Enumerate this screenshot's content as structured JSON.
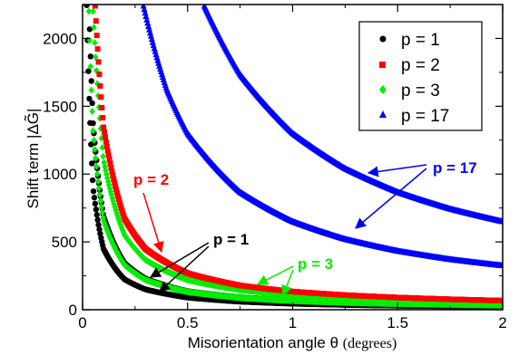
{
  "chart_data": {
    "type": "scatter",
    "xlabel": "Misorientation angle θ",
    "xlabel_unit": "(degrees)",
    "ylabel": "Shift term |ΔG̃|",
    "xlim": [
      0,
      2
    ],
    "ylim": [
      0,
      2250
    ],
    "x_ticks": [
      "0",
      "0.5",
      "1",
      "1.5",
      "2"
    ],
    "y_ticks": [
      "0",
      "500",
      "1000",
      "1500",
      "2000"
    ],
    "legend_position": "top-right",
    "series": [
      {
        "name": "p = 1",
        "color": "#000000",
        "marker": "circle",
        "curves": [
          {
            "x": [
              0.02,
              0.05,
              0.1,
              0.2,
              0.3,
              0.5,
              0.75,
              1.0,
              1.25,
              1.5,
              1.75,
              2.0
            ],
            "y": [
              2245,
              898,
              449,
              224,
              150,
              90,
              60,
              45,
              36,
              30,
              26,
              22
            ]
          },
          {
            "x": [
              0.03,
              0.05,
              0.1,
              0.2,
              0.3,
              0.5,
              0.75,
              1.0,
              1.25,
              1.5,
              1.75,
              2.0
            ],
            "y": [
              2290,
              1375,
              687,
              344,
              229,
              137,
              92,
              69,
              55,
              46,
              39,
              34
            ]
          }
        ]
      },
      {
        "name": "p = 2",
        "color": "#ff0000",
        "marker": "square",
        "curves": [
          {
            "x": [
              0.06,
              0.1,
              0.2,
              0.3,
              0.5,
              0.75,
              1.0,
              1.25,
              1.5,
              1.75,
              2.0
            ],
            "y": [
              2240,
              1345,
              672,
              448,
              269,
              179,
              134,
              108,
              90,
              77,
              67
            ]
          }
        ]
      },
      {
        "name": "p = 3",
        "color": "#00ee00",
        "marker": "diamond",
        "curves": [
          {
            "x": [
              0.03,
              0.05,
              0.1,
              0.2,
              0.3,
              0.5,
              0.75,
              1.0,
              1.25,
              1.5,
              1.75,
              2.0
            ],
            "y": [
              2200,
              1320,
              660,
              330,
              220,
              132,
              88,
              66,
              53,
              44,
              38,
              33
            ]
          },
          {
            "x": [
              0.05,
              0.1,
              0.2,
              0.3,
              0.5,
              0.75,
              1.0,
              1.25,
              1.5,
              1.75,
              2.0
            ],
            "y": [
              2200,
              1100,
              550,
              367,
              220,
              147,
              110,
              88,
              73,
              63,
              55
            ]
          }
        ]
      },
      {
        "name": "p = 17",
        "color": "#0000ff",
        "marker": "triangle",
        "curves": [
          {
            "x": [
              0.29,
              0.4,
              0.5,
              0.75,
              1.0,
              1.25,
              1.5,
              1.75,
              2.0
            ],
            "y": [
              2240,
              1628,
              1302,
              868,
              651,
              521,
              434,
              372,
              326
            ]
          },
          {
            "x": [
              0.58,
              0.75,
              1.0,
              1.25,
              1.5,
              1.75,
              2.0
            ],
            "y": [
              2240,
              1736,
              1302,
              1042,
              868,
              744,
              651
            ]
          }
        ]
      }
    ],
    "annotations": [
      {
        "text": "p = 2",
        "color": "#ff0000"
      },
      {
        "text": "p = 1",
        "color": "#000000"
      },
      {
        "text": "p = 3",
        "color": "#00ee00"
      },
      {
        "text": "p = 17",
        "color": "#0000ff"
      }
    ]
  }
}
